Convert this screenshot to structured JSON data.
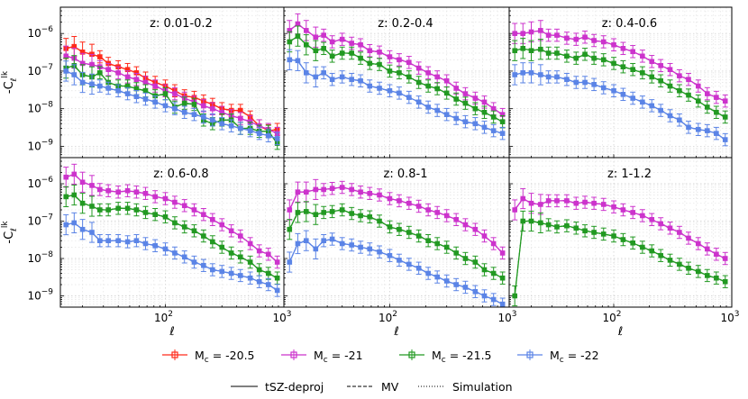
{
  "chart_data": {
    "type": "line",
    "xlabel": "ℓ",
    "ylabel": "-C_ℓ^{lk}",
    "xscale": "log",
    "yscale": "log",
    "xlim": [
      13,
      1000
    ],
    "ylim": [
      5e-10,
      5e-06
    ],
    "grid": true,
    "x_tick_labels": [
      {
        "value": 100,
        "base": "10",
        "exp": "2"
      },
      {
        "value": 1000,
        "base": "10",
        "exp": "3"
      }
    ],
    "y_tick_labels": [
      {
        "value": 1e-06,
        "base": "10",
        "exp": "−6"
      },
      {
        "value": 1e-07,
        "base": "10",
        "exp": "−7"
      },
      {
        "value": 1e-08,
        "base": "10",
        "exp": "−8"
      },
      {
        "value": 1e-09,
        "base": "10",
        "exp": "−9"
      }
    ],
    "x": [
      14.5,
      17,
      20,
      24,
      28,
      33,
      40,
      48,
      57,
      68,
      82,
      100,
      120,
      145,
      175,
      210,
      250,
      300,
      360,
      430,
      520,
      620,
      740,
      880
    ],
    "series_styles": [
      {
        "name": "M_c = -20.5",
        "label_main": "M",
        "label_sub": "c",
        "label_value": " = -20.5",
        "color": "#ff2a1a"
      },
      {
        "name": "M_c = -21",
        "label_main": "M",
        "label_sub": "c",
        "label_value": " = -21",
        "color": "#cc33cc"
      },
      {
        "name": "M_c = -21.5",
        "label_main": "M",
        "label_sub": "c",
        "label_value": " = -21.5",
        "color": "#229922"
      },
      {
        "name": "M_c = -22",
        "label_main": "M",
        "label_sub": "c",
        "label_value": " = -22",
        "color": "#5b84e6"
      }
    ],
    "line_styles": [
      {
        "name": "tSZ-deproj",
        "dash": ""
      },
      {
        "name": "MV",
        "dash": "4,2"
      },
      {
        "name": "Simulation",
        "dash": "1,2"
      }
    ],
    "panels": [
      {
        "title": "z: 0.01-0.2",
        "series": [
          {
            "name": "M_c = -20.5",
            "values": [
              4e-07,
              4.5e-07,
              3.2e-07,
              2.8e-07,
              2.4e-07,
              1.6e-07,
              1.3e-07,
              1.1e-07,
              9e-08,
              6.5e-08,
              5e-08,
              4e-08,
              3e-08,
              2.2e-08,
              2e-08,
              1.6e-08,
              1.3e-08,
              1e-08,
              9e-09,
              9e-09,
              6e-09,
              3.5e-09,
              2.6e-09,
              2.8e-09
            ]
          },
          {
            "name": "M_c = -21",
            "values": [
              2.5e-07,
              2.2e-07,
              1.6e-07,
              1.5e-07,
              1.3e-07,
              1.1e-07,
              9e-08,
              7e-08,
              6e-08,
              5e-08,
              4e-08,
              3e-08,
              2.5e-08,
              1.9e-08,
              1.5e-08,
              1.2e-08,
              1e-08,
              8e-09,
              6.5e-09,
              5.5e-09,
              4.5e-09,
              3.5e-09,
              2.8e-09,
              2.2e-09
            ]
          },
          {
            "name": "M_c = -21.5",
            "values": [
              1.2e-07,
              1.4e-07,
              8e-08,
              7e-08,
              9e-08,
              5e-08,
              4e-08,
              4e-08,
              3.4e-08,
              3e-08,
              2.2e-08,
              2.5e-08,
              1.1e-08,
              1.4e-08,
              1.3e-08,
              5e-09,
              4e-09,
              5e-09,
              5e-09,
              3e-09,
              3e-09,
              2.5e-09,
              2.5e-09,
              1.2e-09
            ]
          },
          {
            "name": "M_c = -22",
            "values": [
              1e-07,
              8e-08,
              5e-08,
              4.5e-08,
              4e-08,
              3.5e-08,
              3e-08,
              2.5e-08,
              2.1e-08,
              1.8e-08,
              1.5e-08,
              1.2e-08,
              1e-08,
              8e-09,
              7e-09,
              6e-09,
              5e-09,
              4e-09,
              3.5e-09,
              3e-09,
              2.6e-09,
              2.2e-09,
              1.9e-09,
              1.6e-09
            ]
          }
        ]
      },
      {
        "title": "z: 0.2-0.4",
        "series": [
          {
            "name": "M_c = -20.5",
            "values": []
          },
          {
            "name": "M_c = -21",
            "values": [
              1.2e-06,
              1.8e-06,
              1.2e-06,
              8e-07,
              9e-07,
              6e-07,
              7e-07,
              5.5e-07,
              5e-07,
              3.5e-07,
              3.2e-07,
              2.4e-07,
              2e-07,
              1.7e-07,
              1.2e-07,
              9e-08,
              7e-08,
              5.5e-08,
              3.5e-08,
              2.5e-08,
              1.9e-08,
              1.5e-08,
              1e-08,
              7e-09
            ]
          },
          {
            "name": "M_c = -21.5",
            "values": [
              6e-07,
              8.5e-07,
              5e-07,
              3.5e-07,
              4e-07,
              2.5e-07,
              3e-07,
              3e-07,
              2.2e-07,
              1.6e-07,
              1.5e-07,
              1e-07,
              9e-08,
              7e-08,
              5e-08,
              4e-08,
              3.4e-08,
              2.6e-08,
              1.8e-08,
              1.4e-08,
              1e-08,
              8e-09,
              6e-09,
              4.5e-09
            ]
          },
          {
            "name": "M_c = -22",
            "values": [
              2e-07,
              1.9e-07,
              9e-08,
              7e-08,
              9e-08,
              6e-08,
              7e-08,
              6e-08,
              5.5e-08,
              4e-08,
              3.5e-08,
              3e-08,
              2.6e-08,
              2e-08,
              1.5e-08,
              1.1e-08,
              9e-09,
              7e-09,
              5.5e-09,
              4.5e-09,
              4e-09,
              3.2e-09,
              2.6e-09,
              2.2e-09
            ]
          }
        ]
      },
      {
        "title": "z: 0.4-0.6",
        "series": [
          {
            "name": "M_c = -20.5",
            "values": []
          },
          {
            "name": "M_c = -21",
            "values": [
              1e-06,
              1e-06,
              1.1e-06,
              1.2e-06,
              9e-07,
              9e-07,
              7.5e-07,
              7e-07,
              8e-07,
              6.5e-07,
              6e-07,
              5e-07,
              4e-07,
              3.3e-07,
              2.5e-07,
              1.8e-07,
              1.4e-07,
              1.1e-07,
              7.5e-08,
              6e-08,
              4e-08,
              2.5e-08,
              2e-08,
              1.6e-08
            ]
          },
          {
            "name": "M_c = -21.5",
            "values": [
              3.5e-07,
              4e-07,
              3.5e-07,
              3.8e-07,
              3e-07,
              3e-07,
              2.5e-07,
              2.2e-07,
              2.8e-07,
              2.2e-07,
              2e-07,
              1.6e-07,
              1.3e-07,
              1.1e-07,
              9e-08,
              7e-08,
              5.5e-08,
              4e-08,
              3e-08,
              2.3e-08,
              1.6e-08,
              1.1e-08,
              8e-09,
              6e-09
            ]
          },
          {
            "name": "M_c = -22",
            "values": [
              8e-08,
              9e-08,
              9e-08,
              8e-08,
              7e-08,
              7e-08,
              6e-08,
              5e-08,
              5e-08,
              4.4e-08,
              3.6e-08,
              3e-08,
              2.4e-08,
              1.9e-08,
              1.5e-08,
              1.2e-08,
              9e-09,
              6.5e-09,
              5e-09,
              3.2e-09,
              2.8e-09,
              2.6e-09,
              2.2e-09,
              1.5e-09
            ]
          }
        ]
      },
      {
        "title": "z: 0.6-0.8",
        "series": [
          {
            "name": "M_c = -20.5",
            "values": []
          },
          {
            "name": "M_c = -21",
            "values": [
              1.5e-06,
              1.8e-06,
              1.1e-06,
              9e-07,
              7e-07,
              6.5e-07,
              6e-07,
              6.5e-07,
              6e-07,
              5.5e-07,
              4.5e-07,
              4e-07,
              3.2e-07,
              2.6e-07,
              2e-07,
              1.5e-07,
              1.1e-07,
              8e-08,
              5.5e-08,
              4e-08,
              2.5e-08,
              1.6e-08,
              1.3e-08,
              8e-09
            ]
          },
          {
            "name": "M_c = -21.5",
            "values": [
              4.5e-07,
              5e-07,
              3e-07,
              2.5e-07,
              2e-07,
              2e-07,
              2.2e-07,
              2.2e-07,
              2e-07,
              1.7e-07,
              1.5e-07,
              1.3e-07,
              9e-08,
              7e-08,
              5.5e-08,
              4e-08,
              2.8e-08,
              2e-08,
              1.4e-08,
              1.1e-08,
              8e-09,
              5e-09,
              4e-09,
              3e-09
            ]
          },
          {
            "name": "M_c = -22",
            "values": [
              8e-08,
              9e-08,
              6e-08,
              5e-08,
              3e-08,
              3e-08,
              3e-08,
              2.8e-08,
              3e-08,
              2.5e-08,
              2.2e-08,
              1.8e-08,
              1.4e-08,
              1.1e-08,
              8e-09,
              6.5e-09,
              5e-09,
              4.5e-09,
              4e-09,
              3.5e-09,
              3e-09,
              2.4e-09,
              2e-09,
              1.4e-09
            ]
          }
        ]
      },
      {
        "title": "z: 0.8-1",
        "series": [
          {
            "name": "M_c = -20.5",
            "values": []
          },
          {
            "name": "M_c = -21",
            "values": [
              2e-07,
              6e-07,
              6e-07,
              7e-07,
              7e-07,
              7.5e-07,
              8e-07,
              7e-07,
              6e-07,
              5.5e-07,
              5e-07,
              4e-07,
              3.5e-07,
              3e-07,
              2.5e-07,
              2e-07,
              1.7e-07,
              1.4e-07,
              1.1e-07,
              8e-08,
              6e-08,
              4e-08,
              2.5e-08,
              1.4e-08
            ]
          },
          {
            "name": "M_c = -21.5",
            "values": [
              6e-08,
              1.7e-07,
              1.8e-07,
              1.5e-07,
              1.7e-07,
              1.8e-07,
              2e-07,
              1.6e-07,
              1.4e-07,
              1.3e-07,
              1e-07,
              7e-08,
              6e-08,
              5e-08,
              4e-08,
              3e-08,
              2.5e-08,
              2e-08,
              1.4e-08,
              1e-08,
              8e-09,
              5e-09,
              4e-09,
              3e-09
            ]
          },
          {
            "name": "M_c = -22",
            "values": [
              8e-09,
              2.5e-08,
              3e-08,
              1.8e-08,
              3e-08,
              3.3e-08,
              2.5e-08,
              2.3e-08,
              2e-08,
              1.8e-08,
              1.5e-08,
              1.2e-08,
              9e-09,
              7e-09,
              5.5e-09,
              4e-09,
              3.2e-09,
              2.5e-09,
              2e-09,
              1.7e-09,
              1.3e-09,
              1e-09,
              8e-10,
              6e-10
            ]
          }
        ]
      },
      {
        "title": "z: 1-1.2",
        "series": [
          {
            "name": "M_c = -20.5",
            "values": []
          },
          {
            "name": "M_c = -21",
            "values": [
              2e-07,
              4e-07,
              3e-07,
              2.8e-07,
              3.5e-07,
              3.5e-07,
              3.5e-07,
              3e-07,
              3.2e-07,
              3e-07,
              2.8e-07,
              2.4e-07,
              2e-07,
              1.7e-07,
              1.4e-07,
              1.1e-07,
              8.5e-08,
              6.5e-08,
              5e-08,
              3.5e-08,
              2.5e-08,
              1.8e-08,
              1.3e-08,
              1e-08
            ]
          },
          {
            "name": "M_c = -21.5",
            "values": [
              1e-09,
              1e-07,
              1e-07,
              9e-08,
              8e-08,
              7e-08,
              7.5e-08,
              6.5e-08,
              5.5e-08,
              5e-08,
              4.5e-08,
              4e-08,
              3.2e-08,
              2.6e-08,
              2e-08,
              1.6e-08,
              1.2e-08,
              9e-09,
              7e-09,
              5.5e-09,
              4.5e-09,
              3.5e-09,
              3e-09,
              2.4e-09
            ]
          },
          {
            "name": "M_c = -22",
            "values": []
          }
        ]
      }
    ]
  }
}
